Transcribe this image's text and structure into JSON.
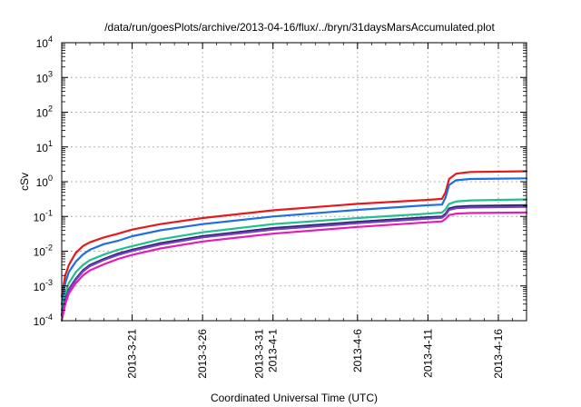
{
  "chart_data": {
    "type": "line",
    "title": "/data/run/goesPlots/archive/2013-04-16/flux/../bryn/31daysMarsAccumulated.plot",
    "xlabel": "Coordinated Universal Time (UTC)",
    "ylabel": "cSv",
    "y_scale": "log",
    "ylim": [
      0.0001,
      10000
    ],
    "xlim": [
      "2013-03-16",
      "2013-04-18"
    ],
    "grid": true,
    "legend": "none",
    "y_ticks": [
      {
        "value": 0.0001,
        "base": "10",
        "exp": "-4"
      },
      {
        "value": 0.001,
        "base": "10",
        "exp": "-3"
      },
      {
        "value": 0.01,
        "base": "10",
        "exp": "-2"
      },
      {
        "value": 0.1,
        "base": "10",
        "exp": "-1"
      },
      {
        "value": 1,
        "base": "10",
        "exp": "0"
      },
      {
        "value": 10,
        "base": "10",
        "exp": "1"
      },
      {
        "value": 100,
        "base": "10",
        "exp": "2"
      },
      {
        "value": 1000,
        "base": "10",
        "exp": "3"
      },
      {
        "value": 10000,
        "base": "10",
        "exp": "4"
      }
    ],
    "x_ticks": [
      {
        "date": "2013-03-21",
        "lines": [
          "2013-3-21"
        ]
      },
      {
        "date": "2013-03-26",
        "lines": [
          "2013-3-26"
        ]
      },
      {
        "date": "2013-03-31",
        "lines": [
          "2013-3-31",
          "2013-4-1"
        ]
      },
      {
        "date": "2013-04-06",
        "lines": [
          "2013-4-6"
        ]
      },
      {
        "date": "2013-04-11",
        "lines": [
          "2013-4-11"
        ]
      },
      {
        "date": "2013-04-16",
        "lines": [
          "2013-4-16"
        ]
      }
    ],
    "series": [
      {
        "color": "#e41a1c",
        "x": [
          "2013-03-16T00:00",
          "2013-03-16T06:00",
          "2013-03-16T12:00",
          "2013-03-17T00:00",
          "2013-03-17T12:00",
          "2013-03-18T00:00",
          "2013-03-19T00:00",
          "2013-03-20T00:00",
          "2013-03-21T00:00",
          "2013-03-23T00:00",
          "2013-03-26T00:00",
          "2013-03-31T00:00",
          "2013-04-06T00:00",
          "2013-04-11T00:00",
          "2013-04-12T00:00",
          "2013-04-12T06:00",
          "2013-04-12T12:00",
          "2013-04-13T00:00",
          "2013-04-14T00:00",
          "2013-04-18T00:00"
        ],
        "y": [
          0.0005,
          0.002,
          0.004,
          0.009,
          0.014,
          0.018,
          0.025,
          0.032,
          0.042,
          0.06,
          0.09,
          0.15,
          0.23,
          0.3,
          0.32,
          0.5,
          1.2,
          1.7,
          1.9,
          2.0
        ]
      },
      {
        "color": "#1f6fe0",
        "x": [
          "2013-03-16T00:00",
          "2013-03-16T06:00",
          "2013-03-16T12:00",
          "2013-03-17T00:00",
          "2013-03-17T12:00",
          "2013-03-18T00:00",
          "2013-03-19T00:00",
          "2013-03-20T00:00",
          "2013-03-21T00:00",
          "2013-03-23T00:00",
          "2013-03-26T00:00",
          "2013-03-31T00:00",
          "2013-04-06T00:00",
          "2013-04-11T00:00",
          "2013-04-12T00:00",
          "2013-04-12T06:00",
          "2013-04-12T12:00",
          "2013-04-13T00:00",
          "2013-04-14T00:00",
          "2013-04-18T00:00"
        ],
        "y": [
          0.0003,
          0.0012,
          0.0025,
          0.005,
          0.008,
          0.011,
          0.016,
          0.02,
          0.027,
          0.04,
          0.06,
          0.1,
          0.155,
          0.21,
          0.22,
          0.35,
          0.8,
          1.1,
          1.2,
          1.25
        ]
      },
      {
        "color": "#1ec08e",
        "x": [
          "2013-03-16T00:00",
          "2013-03-16T06:00",
          "2013-03-16T12:00",
          "2013-03-17T00:00",
          "2013-03-17T12:00",
          "2013-03-18T00:00",
          "2013-03-19T00:00",
          "2013-03-20T00:00",
          "2013-03-21T00:00",
          "2013-03-23T00:00",
          "2013-03-26T00:00",
          "2013-03-31T00:00",
          "2013-04-06T00:00",
          "2013-04-11T00:00",
          "2013-04-12T00:00",
          "2013-04-12T06:00",
          "2013-04-12T12:00",
          "2013-04-13T00:00",
          "2013-04-14T00:00",
          "2013-04-18T00:00"
        ],
        "y": [
          0.0002,
          0.0006,
          0.0012,
          0.0025,
          0.004,
          0.0055,
          0.008,
          0.011,
          0.014,
          0.022,
          0.035,
          0.06,
          0.09,
          0.12,
          0.13,
          0.16,
          0.23,
          0.27,
          0.29,
          0.31
        ]
      },
      {
        "color": "#26266e",
        "x": [
          "2013-03-16T00:00",
          "2013-03-16T06:00",
          "2013-03-16T12:00",
          "2013-03-17T00:00",
          "2013-03-17T12:00",
          "2013-03-18T00:00",
          "2013-03-19T00:00",
          "2013-03-20T00:00",
          "2013-03-21T00:00",
          "2013-03-23T00:00",
          "2013-03-26T00:00",
          "2013-03-31T00:00",
          "2013-04-06T00:00",
          "2013-04-11T00:00",
          "2013-04-12T00:00",
          "2013-04-12T06:00",
          "2013-04-12T12:00",
          "2013-04-13T00:00",
          "2013-04-14T00:00",
          "2013-04-18T00:00"
        ],
        "y": [
          0.00015,
          0.0004,
          0.0008,
          0.0016,
          0.0028,
          0.004,
          0.006,
          0.0085,
          0.011,
          0.017,
          0.027,
          0.046,
          0.07,
          0.095,
          0.1,
          0.12,
          0.17,
          0.19,
          0.2,
          0.21
        ]
      },
      {
        "color": "#7a3fbf",
        "x": [
          "2013-03-16T00:00",
          "2013-03-16T06:00",
          "2013-03-16T12:00",
          "2013-03-17T00:00",
          "2013-03-17T12:00",
          "2013-03-18T00:00",
          "2013-03-19T00:00",
          "2013-03-20T00:00",
          "2013-03-21T00:00",
          "2013-03-23T00:00",
          "2013-03-26T00:00",
          "2013-03-31T00:00",
          "2013-04-06T00:00",
          "2013-04-11T00:00",
          "2013-04-12T00:00",
          "2013-04-12T06:00",
          "2013-04-12T12:00",
          "2013-04-13T00:00",
          "2013-04-14T00:00",
          "2013-04-18T00:00"
        ],
        "y": [
          0.00014,
          0.00037,
          0.00075,
          0.0015,
          0.0026,
          0.0037,
          0.0056,
          0.0078,
          0.0102,
          0.0155,
          0.025,
          0.042,
          0.064,
          0.087,
          0.092,
          0.11,
          0.155,
          0.172,
          0.181,
          0.19
        ]
      },
      {
        "color": "#e01fb8",
        "x": [
          "2013-03-16T00:00",
          "2013-03-16T06:00",
          "2013-03-16T12:00",
          "2013-03-17T00:00",
          "2013-03-17T12:00",
          "2013-03-18T00:00",
          "2013-03-19T00:00",
          "2013-03-20T00:00",
          "2013-03-21T00:00",
          "2013-03-23T00:00",
          "2013-03-26T00:00",
          "2013-03-31T00:00",
          "2013-04-06T00:00",
          "2013-04-11T00:00",
          "2013-04-12T00:00",
          "2013-04-12T06:00",
          "2013-04-12T12:00",
          "2013-04-13T00:00",
          "2013-04-14T00:00",
          "2013-04-18T00:00"
        ],
        "y": [
          0.0001,
          0.0003,
          0.0006,
          0.0012,
          0.002,
          0.0028,
          0.0042,
          0.006,
          0.0078,
          0.012,
          0.019,
          0.032,
          0.05,
          0.068,
          0.072,
          0.085,
          0.11,
          0.12,
          0.125,
          0.13
        ]
      }
    ]
  }
}
